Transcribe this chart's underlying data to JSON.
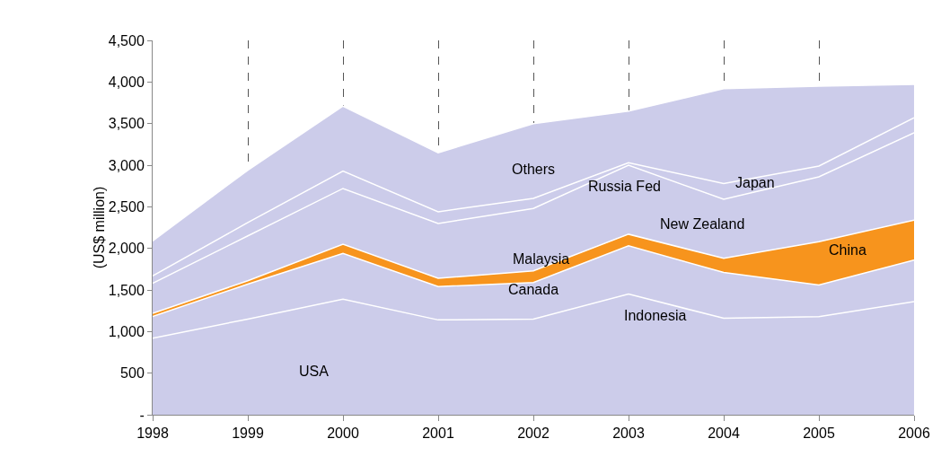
{
  "chart_data": {
    "type": "area",
    "stacked": true,
    "ylabel": "(US$ million)",
    "x": [
      1998,
      1999,
      2000,
      2001,
      2002,
      2003,
      2004,
      2005,
      2006
    ],
    "series": [
      {
        "color": "#ccccea",
        "values": [
          920,
          1150,
          1390,
          1140,
          1150,
          1450,
          1160,
          1180,
          1360
        ]
      },
      {
        "color": "#ccccea",
        "values": [
          260,
          420,
          550,
          400,
          440,
          580,
          550,
          380,
          500
        ]
      },
      {
        "color": "#f7941d",
        "values": [
          40,
          40,
          110,
          100,
          140,
          140,
          170,
          520,
          480
        ]
      },
      {
        "color": "#ccccea",
        "values": [
          360,
          540,
          670,
          660,
          750,
          830,
          710,
          780,
          1050
        ]
      },
      {
        "color": "#ccccea",
        "values": [
          90,
          160,
          210,
          140,
          120,
          30,
          190,
          130,
          180
        ]
      },
      {
        "color": "#ccccea",
        "values": [
          420,
          630,
          780,
          710,
          900,
          620,
          1140,
          960,
          400
        ]
      }
    ],
    "xlim": [
      1998,
      2006
    ],
    "xticks": [
      1998,
      1999,
      2000,
      2001,
      2002,
      2003,
      2004,
      2005,
      2006
    ],
    "ylim": [
      0,
      4500
    ],
    "yticks": [
      {
        "value": 0,
        "label": "-"
      },
      500,
      {
        "value": 1000,
        "label": "1,000"
      },
      {
        "value": 1500,
        "label": "1,500"
      },
      {
        "value": 2000,
        "label": "2,000"
      },
      {
        "value": 2500,
        "label": "2,500"
      },
      {
        "value": 3000,
        "label": "3,000"
      },
      {
        "value": 3500,
        "label": "3,500"
      },
      {
        "value": 4000,
        "label": "4,000"
      },
      {
        "value": 4500,
        "label": "4,500"
      }
    ],
    "grid": "x",
    "annotations": [
      "USA",
      "Indonesia",
      "Canada",
      "Malaysia",
      "China",
      "New Zealand",
      "Russia Fed",
      "Japan",
      "Others"
    ]
  }
}
